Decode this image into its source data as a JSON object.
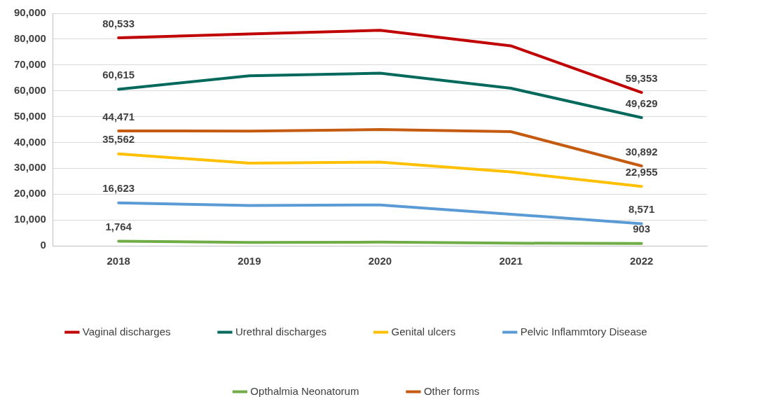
{
  "chart_data": {
    "type": "line",
    "categories": [
      "2018",
      "2019",
      "2020",
      "2021",
      "2022"
    ],
    "series": [
      {
        "name": "Vaginal discharges",
        "color": "#c00000",
        "values": [
          80533,
          82000,
          83400,
          77400,
          59353
        ],
        "value_labels": [
          "80,533",
          null,
          null,
          null,
          "59,353"
        ]
      },
      {
        "name": "Urethral discharges",
        "color": "#00695c",
        "values": [
          60615,
          65800,
          66800,
          61000,
          49629
        ],
        "value_labels": [
          "60,615",
          null,
          null,
          null,
          "49,629"
        ]
      },
      {
        "name": "Genital ulcers",
        "color": "#ffc000",
        "values": [
          35562,
          32000,
          32400,
          28600,
          22955
        ],
        "value_labels": [
          "35,562",
          null,
          null,
          null,
          "22,955"
        ]
      },
      {
        "name": "Pelvic Inflammtory Disease",
        "color": "#5b9bd5",
        "values": [
          16623,
          15600,
          15800,
          12200,
          8571
        ],
        "value_labels": [
          "16,623",
          null,
          null,
          null,
          "8,571"
        ]
      },
      {
        "name": "Opthalmia Neonatorum",
        "color": "#70ad47",
        "values": [
          1764,
          1300,
          1400,
          1000,
          903
        ],
        "value_labels": [
          "1,764",
          null,
          null,
          null,
          "903"
        ]
      },
      {
        "name": "Other forms",
        "color": "#c55a11",
        "values": [
          44471,
          44400,
          45000,
          44200,
          30892
        ],
        "value_labels": [
          "44,471",
          null,
          null,
          null,
          "30,892"
        ]
      }
    ],
    "ylim": [
      0,
      90000
    ],
    "yticks": [
      {
        "value": 0,
        "label": "0"
      },
      {
        "value": 10000,
        "label": "10,000"
      },
      {
        "value": 20000,
        "label": "20,000"
      },
      {
        "value": 30000,
        "label": "30,000"
      },
      {
        "value": 40000,
        "label": "40,000"
      },
      {
        "value": 50000,
        "label": "50,000"
      },
      {
        "value": 60000,
        "label": "60,000"
      },
      {
        "value": 70000,
        "label": "70,000"
      },
      {
        "value": 80000,
        "label": "80,000"
      },
      {
        "value": 90000,
        "label": "90,000"
      }
    ],
    "grid": "y",
    "legend": "bottom",
    "marker": "none",
    "line_style": "solid"
  }
}
